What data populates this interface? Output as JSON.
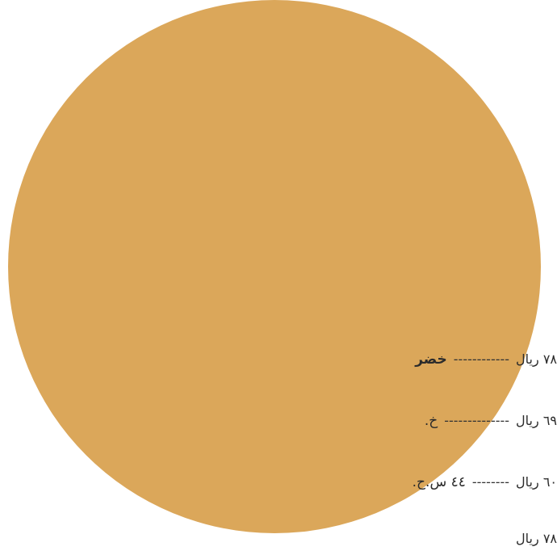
{
  "colors": {
    "circle": "#dba75a",
    "text": "#2b2b2b"
  },
  "menu": {
    "items": [
      {
        "name": "خضر",
        "dots": "------------",
        "price": "٧٨ ريال",
        "bold": true
      },
      {
        "name": "خ.",
        "dots": "--------------",
        "price": "٦٩ ريال",
        "bold": false
      },
      {
        "name": "٤٤ س.ح.",
        "dots": "--------",
        "price": "٦٠ ريال",
        "bold": false
      },
      {
        "name": "",
        "dots": "",
        "price": "٧٨ ريال",
        "bold": false
      }
    ]
  }
}
